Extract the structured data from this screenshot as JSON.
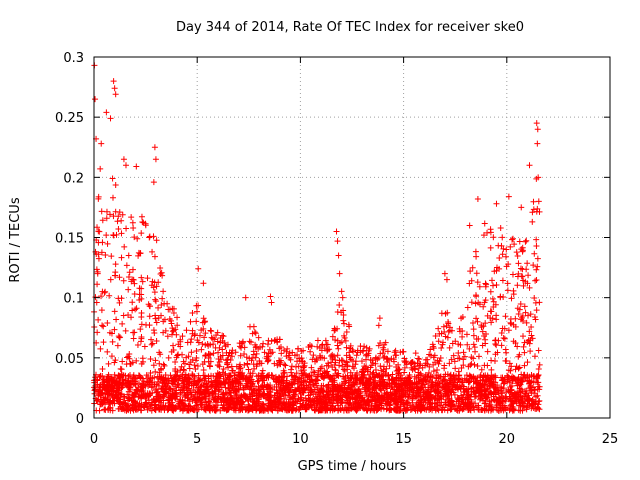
{
  "chart_data": {
    "type": "scatter",
    "title": "Day 344 of 2014, Rate Of TEC Index for receiver ske0",
    "xlabel": "GPS time / hours",
    "ylabel": "ROTI / TECUs",
    "xlim": [
      0,
      25
    ],
    "ylim": [
      0,
      0.3
    ],
    "x_ticks": [
      "0",
      "5",
      "10",
      "15",
      "20",
      "25"
    ],
    "y_ticks": [
      "0",
      "0.05",
      "0.1",
      "0.15",
      "0.2",
      "0.25",
      "0.3"
    ],
    "grid": true,
    "marker": "+",
    "series_color": "#ff0000",
    "x_data_range": [
      0,
      21.6
    ],
    "envelope": {
      "x": [
        0,
        0.5,
        1,
        1.5,
        2,
        2.5,
        3,
        3.5,
        4,
        4.5,
        5,
        5.5,
        6,
        6.5,
        7,
        7.5,
        8,
        8.5,
        9,
        9.5,
        10,
        10.5,
        11,
        11.5,
        12,
        12.5,
        13,
        13.5,
        14,
        14.5,
        15,
        15.5,
        16,
        16.5,
        17,
        17.5,
        18,
        18.5,
        19,
        19.5,
        20,
        20.5,
        21,
        21.5
      ],
      "upper": [
        0.2,
        0.17,
        0.19,
        0.17,
        0.17,
        0.16,
        0.15,
        0.1,
        0.08,
        0.075,
        0.09,
        0.07,
        0.065,
        0.06,
        0.055,
        0.07,
        0.07,
        0.06,
        0.06,
        0.05,
        0.055,
        0.055,
        0.06,
        0.06,
        0.1,
        0.06,
        0.055,
        0.05,
        0.06,
        0.05,
        0.05,
        0.05,
        0.04,
        0.06,
        0.09,
        0.06,
        0.1,
        0.14,
        0.16,
        0.15,
        0.16,
        0.14,
        0.15,
        0.2
      ]
    },
    "highlights": [
      {
        "x": 0.02,
        "y": 0.293
      },
      {
        "x": 0.05,
        "y": 0.265
      },
      {
        "x": 0.1,
        "y": 0.232
      },
      {
        "x": 0.35,
        "y": 0.228
      },
      {
        "x": 0.6,
        "y": 0.254
      },
      {
        "x": 0.8,
        "y": 0.249
      },
      {
        "x": 0.95,
        "y": 0.28
      },
      {
        "x": 1.0,
        "y": 0.274
      },
      {
        "x": 1.05,
        "y": 0.269
      },
      {
        "x": 1.45,
        "y": 0.215
      },
      {
        "x": 1.55,
        "y": 0.21
      },
      {
        "x": 2.05,
        "y": 0.209
      },
      {
        "x": 2.95,
        "y": 0.225
      },
      {
        "x": 3.0,
        "y": 0.215
      },
      {
        "x": 2.9,
        "y": 0.196
      },
      {
        "x": 0.9,
        "y": 0.199
      },
      {
        "x": 0.3,
        "y": 0.207
      },
      {
        "x": 5.05,
        "y": 0.124
      },
      {
        "x": 5.3,
        "y": 0.112
      },
      {
        "x": 7.35,
        "y": 0.1
      },
      {
        "x": 8.55,
        "y": 0.101
      },
      {
        "x": 8.6,
        "y": 0.096
      },
      {
        "x": 11.75,
        "y": 0.155
      },
      {
        "x": 11.8,
        "y": 0.147
      },
      {
        "x": 11.85,
        "y": 0.135
      },
      {
        "x": 11.9,
        "y": 0.12
      },
      {
        "x": 12.05,
        "y": 0.1
      },
      {
        "x": 13.8,
        "y": 0.077
      },
      {
        "x": 13.85,
        "y": 0.083
      },
      {
        "x": 17.0,
        "y": 0.12
      },
      {
        "x": 17.1,
        "y": 0.115
      },
      {
        "x": 18.2,
        "y": 0.16
      },
      {
        "x": 18.6,
        "y": 0.182
      },
      {
        "x": 19.5,
        "y": 0.178
      },
      {
        "x": 20.1,
        "y": 0.184
      },
      {
        "x": 20.7,
        "y": 0.175
      },
      {
        "x": 21.1,
        "y": 0.21
      },
      {
        "x": 21.45,
        "y": 0.245
      },
      {
        "x": 21.5,
        "y": 0.24
      },
      {
        "x": 21.48,
        "y": 0.228
      },
      {
        "x": 21.52,
        "y": 0.2
      },
      {
        "x": 21.55,
        "y": 0.18
      }
    ]
  }
}
